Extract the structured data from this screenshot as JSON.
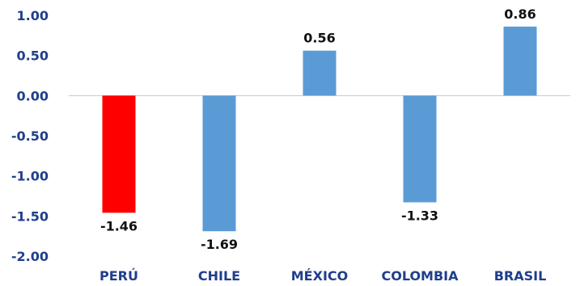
{
  "chart_data": {
    "type": "bar",
    "title": "",
    "xlabel": "",
    "ylabel": "",
    "categories": [
      "PERÚ",
      "CHILE",
      "MÉXICO",
      "COLOMBIA",
      "BRASIL"
    ],
    "values": [
      -1.46,
      -1.69,
      0.56,
      -1.33,
      0.86
    ],
    "value_labels": [
      "-1.46",
      "-1.69",
      "0.56",
      "-1.33",
      "0.86"
    ],
    "ylim": [
      -2.0,
      1.0
    ],
    "yticks": [
      "1.00",
      "0.50",
      "0.00",
      "-0.50",
      "-1.00",
      "-1.50",
      "-2.00"
    ],
    "ytick_values": [
      1.0,
      0.5,
      0.0,
      -0.5,
      -1.0,
      -1.5,
      -2.0
    ],
    "grid": false,
    "legend": "none",
    "colors": {
      "default_bar": "#5b9bd5",
      "highlight_bar": "#ff0000",
      "axis_text": "#1f3e8c",
      "data_label": "#111111",
      "zero_line": "#c8c8c8"
    },
    "highlight": [
      "PERÚ"
    ]
  }
}
